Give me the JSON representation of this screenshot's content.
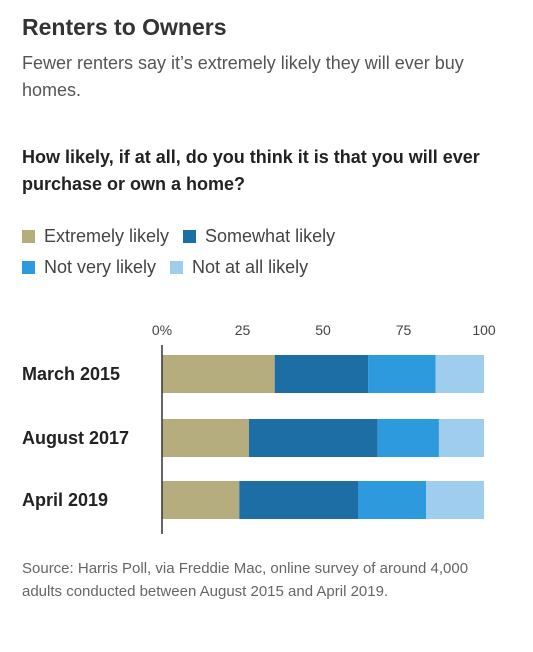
{
  "header": {
    "title": "Renters to Owners",
    "subtitle": "Fewer renters say it’s extremely likely they will ever buy homes.",
    "question": "How likely, if at all, do you think it is that you will ever purchase or own a home?"
  },
  "source": "Source: Harris Poll, via Freddie Mac, online survey of around 4,000 adults conducted between August 2015 and April 2019.",
  "chart_data": {
    "type": "bar",
    "orientation": "horizontal",
    "stacked": true,
    "categories": [
      "March 2015",
      "August 2017",
      "April 2019"
    ],
    "series": [
      {
        "name": "Extremely likely",
        "color": "#b6ad7f",
        "values": [
          35,
          27,
          24
        ]
      },
      {
        "name": "Somewhat likely",
        "color": "#1d6ea5",
        "values": [
          29,
          40,
          37
        ]
      },
      {
        "name": "Not very likely",
        "color": "#2e9ade",
        "values": [
          21,
          19,
          21
        ]
      },
      {
        "name": "Not at all likely",
        "color": "#9fcdee",
        "values": [
          15,
          14,
          18
        ]
      }
    ],
    "xlim": [
      0,
      100
    ],
    "xticks": [
      0,
      25,
      50,
      75,
      100
    ],
    "xtick_labels": [
      "0%",
      "25",
      "50",
      "75",
      "100"
    ],
    "legend_position": "top",
    "grid": false
  }
}
